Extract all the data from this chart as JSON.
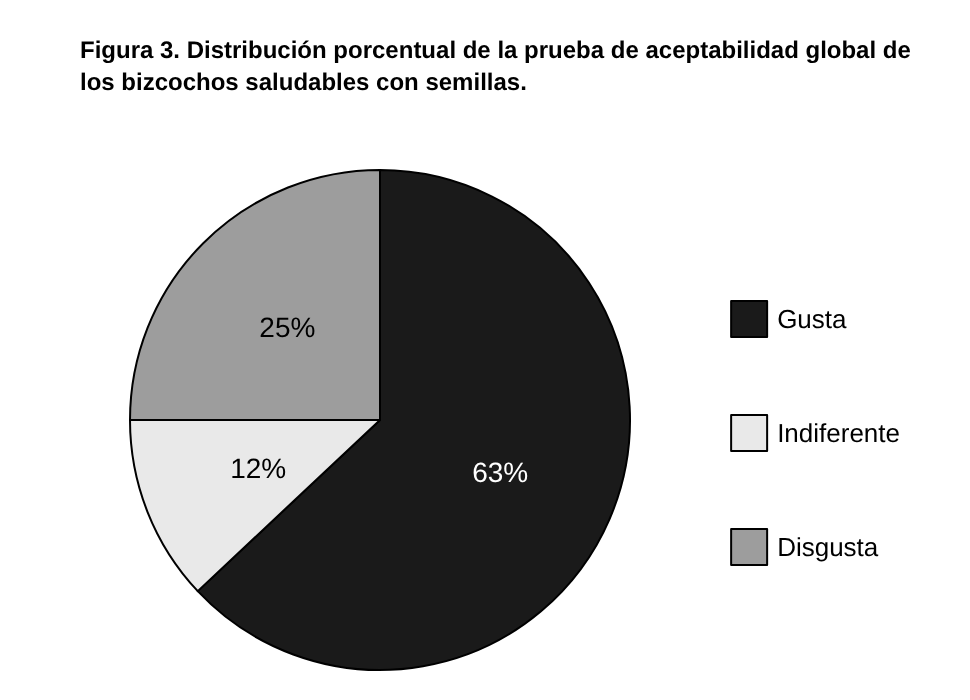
{
  "chart_data": {
    "type": "pie",
    "title": "Figura 3. Distribución porcentual de la prueba de aceptabilidad global de los bizcochos saludables con semillas.",
    "categories": [
      "Gusta",
      "Indiferente",
      "Disgusta"
    ],
    "values": [
      63,
      12,
      25
    ],
    "colors": [
      "#1a1a1a",
      "#e9e9e9",
      "#9d9d9d"
    ],
    "value_labels": [
      "63%",
      "12%",
      "25%"
    ],
    "legend": "right"
  }
}
